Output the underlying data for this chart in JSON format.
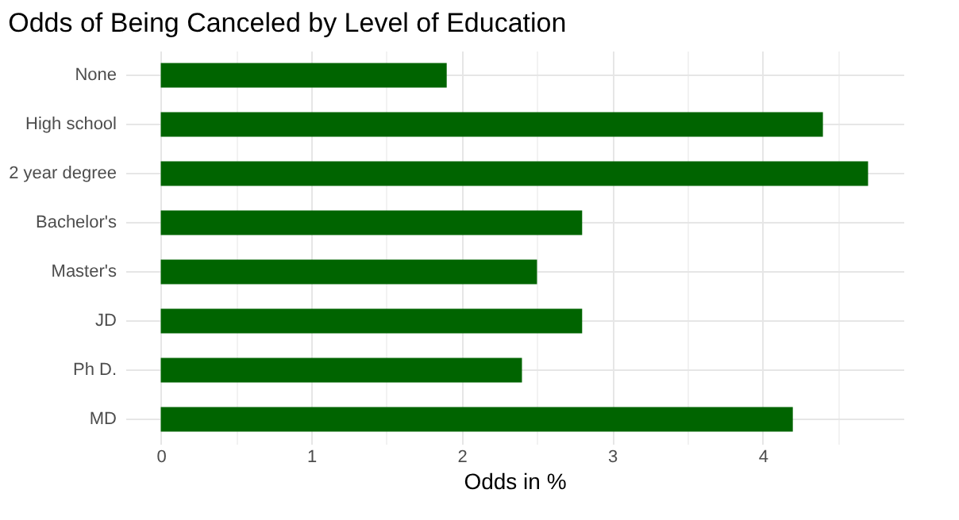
{
  "chart_data": {
    "type": "bar",
    "orientation": "horizontal",
    "title": "Odds of Being Canceled by Level of Education",
    "xlabel": "Odds in %",
    "categories": [
      "None",
      "High school",
      "2 year degree",
      "Bachelor's",
      "Master's",
      "JD",
      "Ph D.",
      "MD"
    ],
    "values": [
      1.9,
      4.4,
      4.7,
      2.8,
      2.5,
      2.8,
      2.4,
      4.2
    ],
    "color": "#006400",
    "xlim": [
      -0.235,
      4.935
    ],
    "xticks": [
      0,
      {
        "value": 0.5,
        "label": null
      },
      1,
      {
        "value": 1.5,
        "label": null
      },
      2,
      {
        "value": 2.5,
        "label": null
      },
      3,
      {
        "value": 3.5,
        "label": null
      },
      4,
      {
        "value": 4.5,
        "label": null
      }
    ],
    "grid": true
  }
}
